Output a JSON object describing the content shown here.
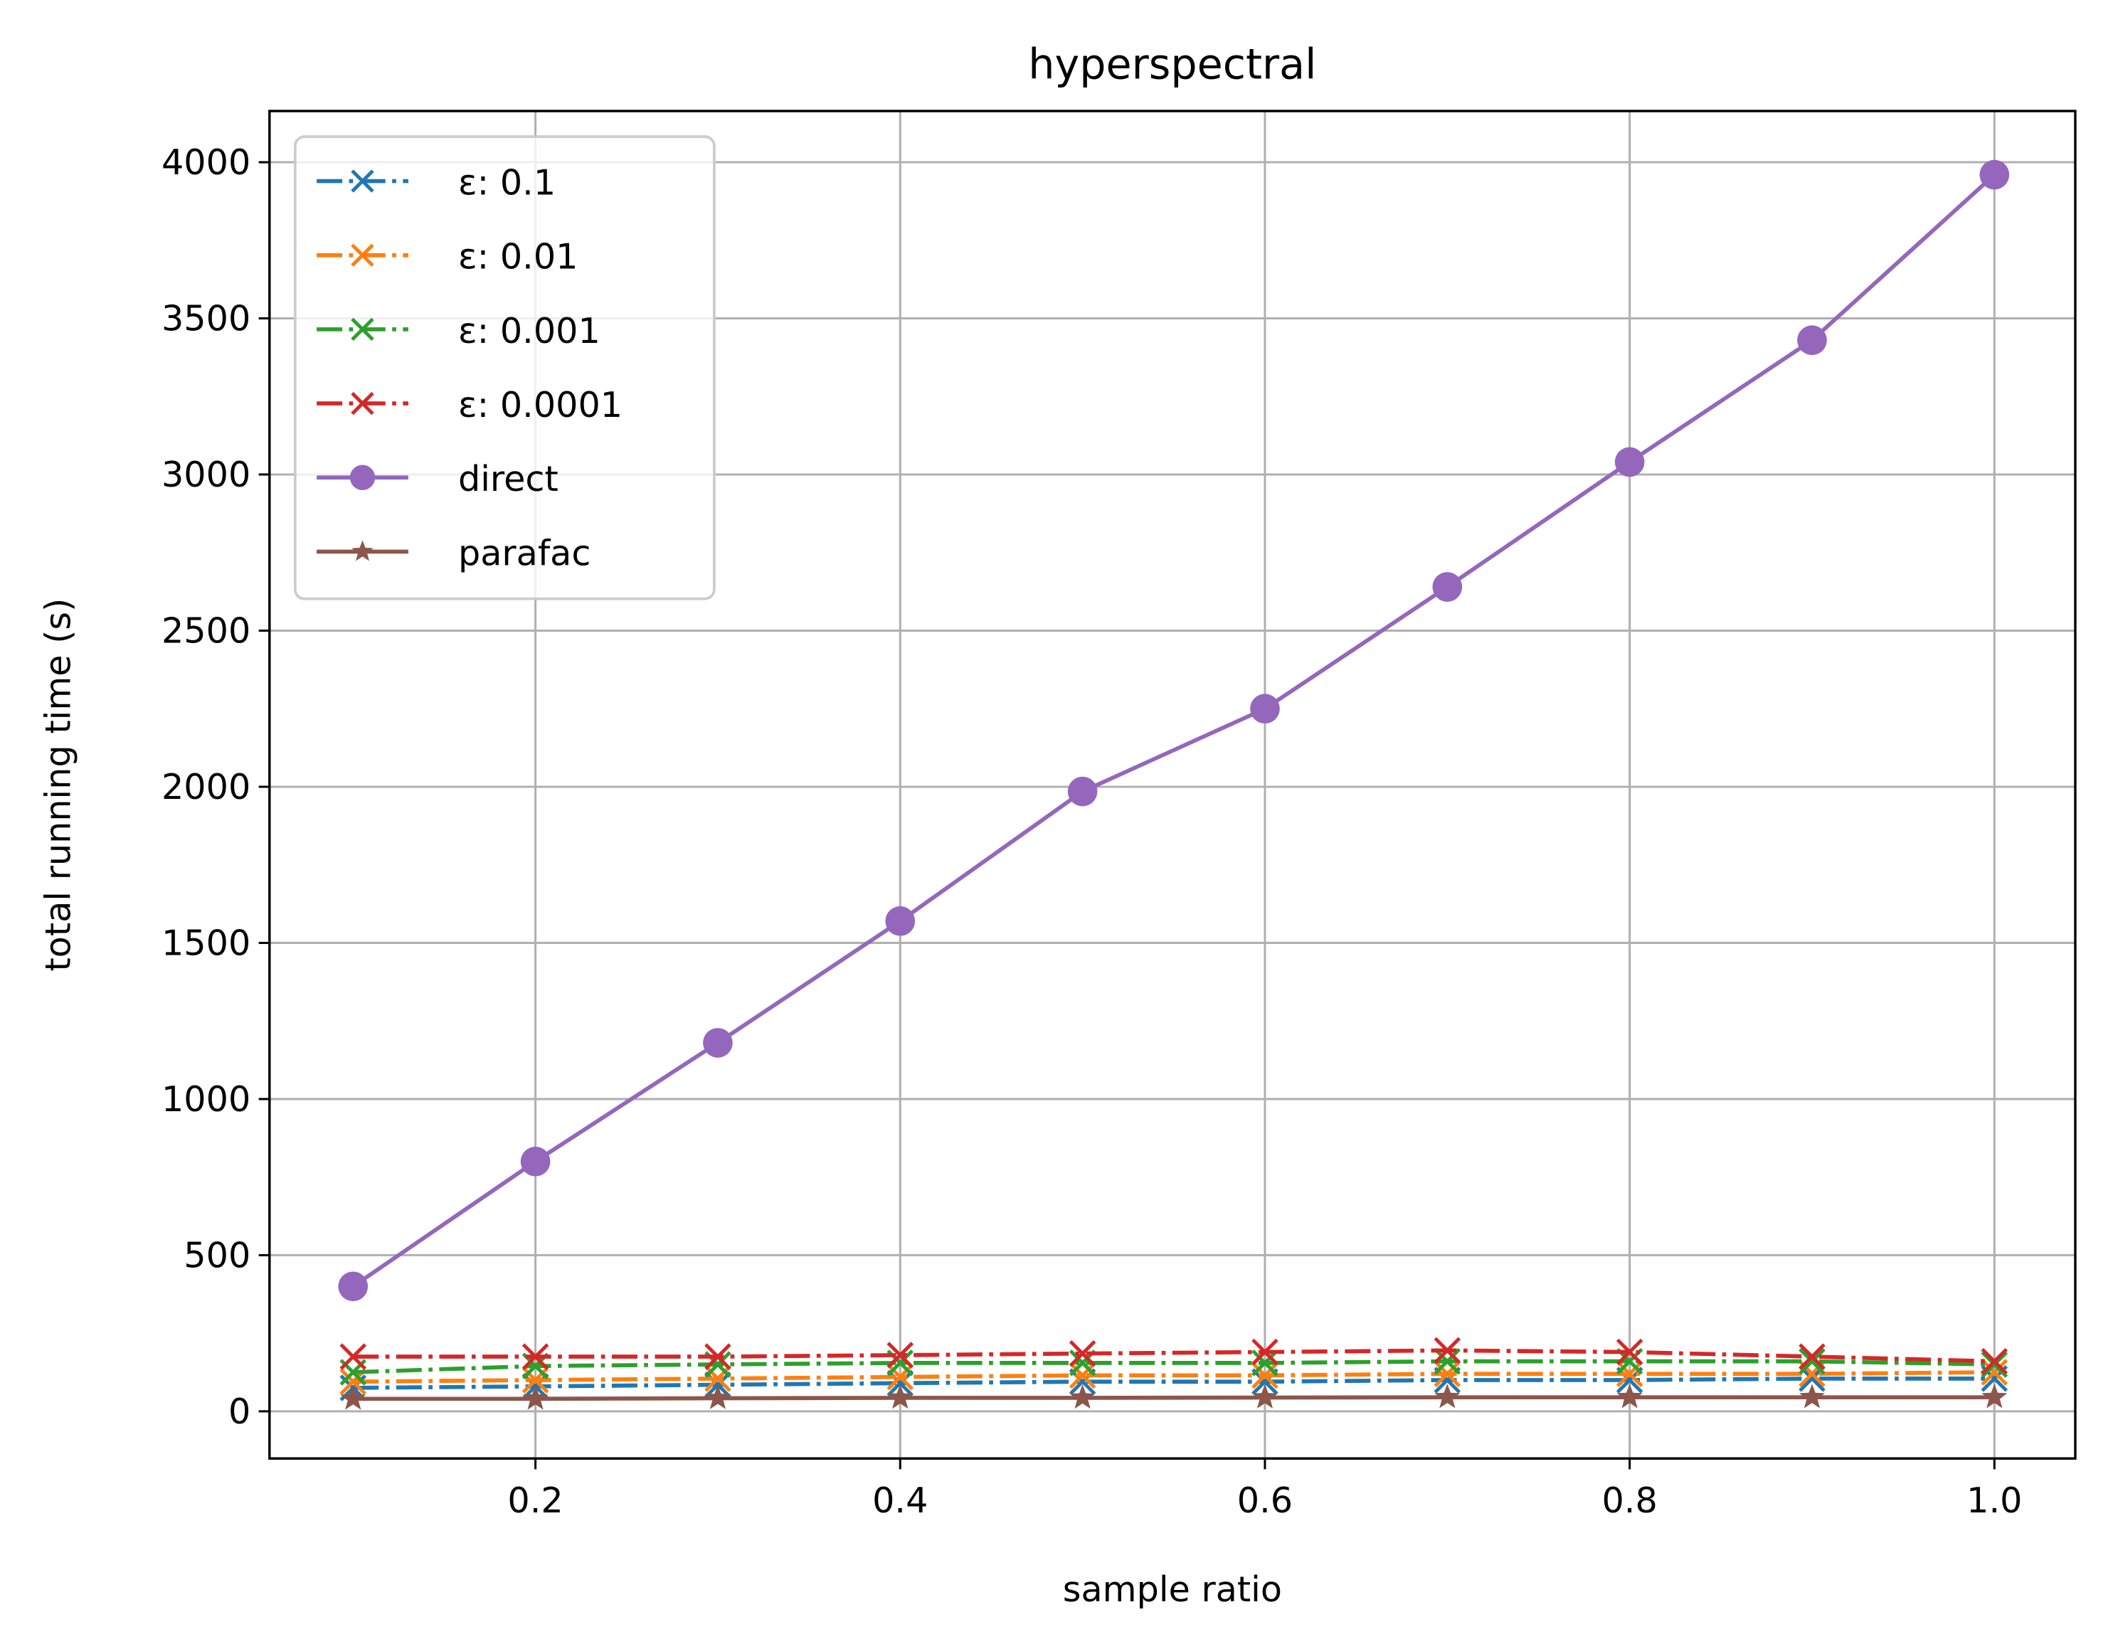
{
  "chart_data": {
    "type": "line",
    "title": "hyperspectral",
    "xlabel": "sample ratio",
    "ylabel": "total running time (s)",
    "x": [
      0.1,
      0.2,
      0.3,
      0.4,
      0.5,
      0.6,
      0.7,
      0.8,
      0.9,
      1.0
    ],
    "xlim": [
      0.055,
      1.045
    ],
    "ylim": [
      -150,
      4150
    ],
    "xticks": [
      "0.2",
      "0.4",
      "0.6",
      "0.8",
      "1.0"
    ],
    "yticks": [
      "0",
      "500",
      "1000",
      "1500",
      "2000",
      "2500",
      "3000",
      "3500",
      "4000"
    ],
    "grid": true,
    "legend_position": "upper left",
    "series": [
      {
        "name": "ε: 0.1",
        "color": "#1f77b4",
        "marker": "x",
        "linestyle": "dashdot",
        "values": [
          75,
          80,
          85,
          90,
          95,
          95,
          100,
          100,
          105,
          105
        ]
      },
      {
        "name": "ε: 0.01",
        "color": "#ff7f0e",
        "marker": "x",
        "linestyle": "dashdot",
        "values": [
          95,
          100,
          105,
          110,
          115,
          115,
          120,
          120,
          120,
          125
        ]
      },
      {
        "name": "ε: 0.001",
        "color": "#2ca02c",
        "marker": "x",
        "linestyle": "dashdot",
        "values": [
          125,
          145,
          150,
          155,
          155,
          155,
          160,
          160,
          160,
          150
        ]
      },
      {
        "name": "ε: 0.0001",
        "color": "#d62728",
        "marker": "x",
        "linestyle": "dashdot",
        "values": [
          175,
          175,
          175,
          180,
          185,
          190,
          195,
          190,
          175,
          160
        ]
      },
      {
        "name": "direct",
        "color": "#9467bd",
        "marker": "o",
        "linestyle": "solid",
        "values": [
          400,
          800,
          1180,
          1570,
          1985,
          2250,
          2640,
          3040,
          3430,
          3960
        ]
      },
      {
        "name": "parafac",
        "color": "#8c564b",
        "marker": "*",
        "linestyle": "solid",
        "values": [
          40,
          40,
          42,
          43,
          43,
          44,
          45,
          45,
          45,
          45
        ]
      }
    ]
  }
}
